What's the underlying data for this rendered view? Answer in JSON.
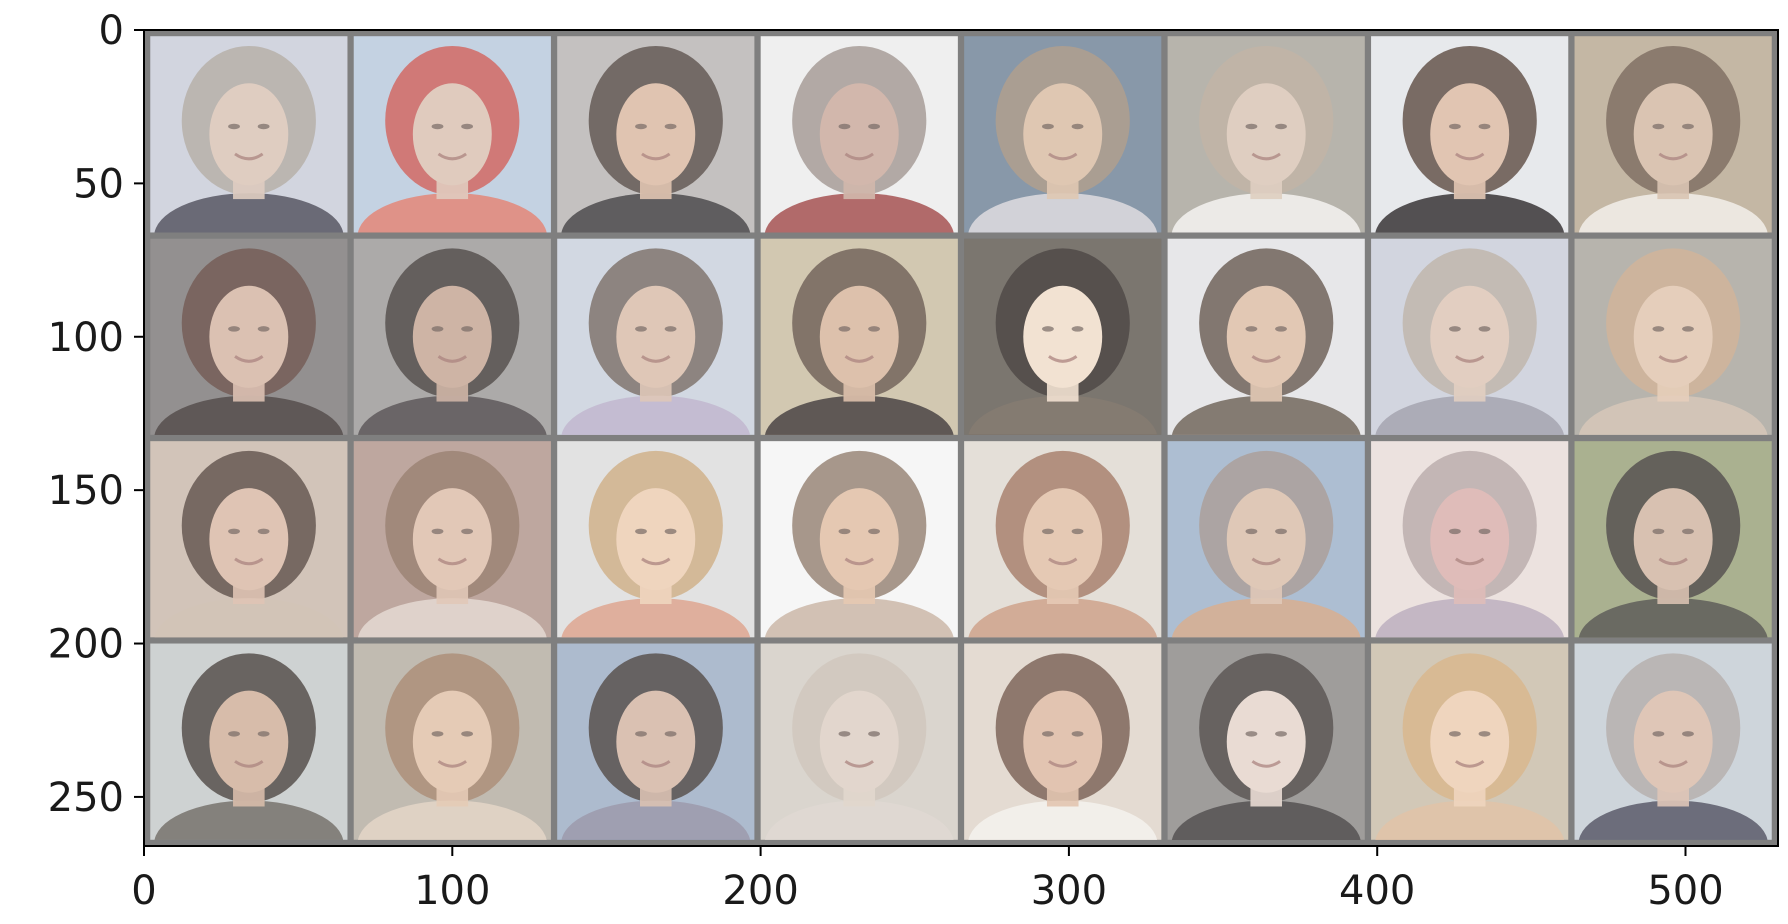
{
  "image": {
    "description_kind": "matplotlib imshow of a grid of generated face images",
    "grid": {
      "rows": 4,
      "cols": 8
    },
    "frame_color": "#7f7f7f",
    "axis_color": "#000000"
  },
  "axes": {
    "x_ticks": [
      {
        "value": 0,
        "label": "0"
      },
      {
        "value": 100,
        "label": "100"
      },
      {
        "value": 200,
        "label": "200"
      },
      {
        "value": 300,
        "label": "300"
      },
      {
        "value": 400,
        "label": "400"
      },
      {
        "value": 500,
        "label": "500"
      }
    ],
    "y_ticks": [
      {
        "value": 0,
        "label": "0"
      },
      {
        "value": 50,
        "label": "50"
      },
      {
        "value": 100,
        "label": "100"
      },
      {
        "value": 150,
        "label": "150"
      },
      {
        "value": 200,
        "label": "200"
      },
      {
        "value": 250,
        "label": "250"
      }
    ],
    "x_range": [
      0,
      530
    ],
    "y_range": [
      0,
      266
    ]
  },
  "tiles": [
    {
      "bg": "#c9ccd8",
      "hair": "#a8a29a",
      "face": "#d8c2b4",
      "shirt": "#4a4a58"
    },
    {
      "bg": "#b8c8dc",
      "hair": "#c8504a",
      "face": "#d9c0b0",
      "shirt": "#d87a6e"
    },
    {
      "bg": "#b8b4b2",
      "hair": "#4a3e38",
      "face": "#d9b8a0",
      "shirt": "#3c3a3c"
    },
    {
      "bg": "#ececec",
      "hair": "#9a8e88",
      "face": "#c8a89a",
      "shirt": "#a04a4a"
    },
    {
      "bg": "#6e8296",
      "hair": "#9c8a78",
      "face": "#d8bba2",
      "shirt": "#c8c8d0"
    },
    {
      "bg": "#a8a49a",
      "hair": "#b4a494",
      "face": "#d8c4b4",
      "shirt": "#e8e6e2"
    },
    {
      "bg": "#e2e4e8",
      "hair": "#4e3a30",
      "face": "#dbb9a2",
      "shirt": "#2e2a2c"
    },
    {
      "bg": "#b8a890",
      "hair": "#6a5648",
      "face": "#d2b8a2",
      "shirt": "#e8e2da"
    },
    {
      "bg": "#7c7878",
      "hair": "#5a3e36",
      "face": "#d4b4a2",
      "shirt": "#3c3432"
    },
    {
      "bg": "#9a9896",
      "hair": "#3a3230",
      "face": "#c4a492",
      "shirt": "#4a4446"
    },
    {
      "bg": "#c8d0dc",
      "hair": "#6a5e56",
      "face": "#d8bba8",
      "shirt": "#b8aec8"
    },
    {
      "bg": "#c8bca0",
      "hair": "#5c4a3e",
      "face": "#d6b49a",
      "shirt": "#3c3430"
    },
    {
      "bg": "#5e5850",
      "hair": "#2c2622",
      "face": "#f0dcc8",
      "shirt": "#6a5e52"
    },
    {
      "bg": "#e2e2e4",
      "hair": "#5a4a40",
      "face": "#dcbca4",
      "shirt": "#6a5e54"
    },
    {
      "bg": "#c8ccd8",
      "hair": "#b4aa9e",
      "face": "#dcc4b4",
      "shirt": "#9a9aa8"
    },
    {
      "bg": "#a8a49c",
      "hair": "#c4a486",
      "face": "#e0c4ac",
      "shirt": "#c8b8a8"
    },
    {
      "bg": "#c8b8aa",
      "hair": "#4e3c34",
      "face": "#d8b8a4",
      "shirt": "#c8b8a8"
    },
    {
      "bg": "#b0948a",
      "hair": "#8a6a5a",
      "face": "#dcbca8",
      "shirt": "#d8c8c0"
    },
    {
      "bg": "#dcdcdc",
      "hair": "#c8a478",
      "face": "#ecccb0",
      "shirt": "#d89e88"
    },
    {
      "bg": "#f4f4f4",
      "hair": "#8a7464",
      "face": "#e0bca2",
      "shirt": "#c8b4a4"
    },
    {
      "bg": "#ded8d0",
      "hair": "#9a6e56",
      "face": "#e0bea4",
      "shirt": "#c89a80"
    },
    {
      "bg": "#9cb0c8",
      "hair": "#9a8e88",
      "face": "#d8bca8",
      "shirt": "#c8a084"
    },
    {
      "bg": "#e8dcd8",
      "hair": "#b0a0a0",
      "face": "#d8aeaa",
      "shirt": "#b8a8b8"
    },
    {
      "bg": "#98a078",
      "hair": "#3a3430",
      "face": "#d0b4a0",
      "shirt": "#4a4a40"
    },
    {
      "bg": "#c4c8c8",
      "hair": "#3c3430",
      "face": "#cfae98",
      "shirt": "#6a6660"
    },
    {
      "bg": "#b4aca0",
      "hair": "#9c7a60",
      "face": "#e0c0a6",
      "shirt": "#d8c8b8"
    },
    {
      "bg": "#9cacc4",
      "hair": "#3c3432",
      "face": "#d2b4a2",
      "shirt": "#8a8aa0"
    },
    {
      "bg": "#d2ccc4",
      "hair": "#c8bcb0",
      "face": "#dccec2",
      "shirt": "#d8d0c8"
    },
    {
      "bg": "#ded4c8",
      "hair": "#6a4e40",
      "face": "#dcb8a0",
      "shirt": "#f0ece6"
    },
    {
      "bg": "#8a8886",
      "hair": "#3e3836",
      "face": "#e4d4ca",
      "shirt": "#3e3a3a"
    },
    {
      "bg": "#c8bca8",
      "hair": "#d0a878",
      "face": "#ecccb0",
      "shirt": "#d8b898"
    },
    {
      "bg": "#c4ccd4",
      "hair": "#a8a2a0",
      "face": "#d8baa8",
      "shirt": "#4c4e5e"
    }
  ]
}
